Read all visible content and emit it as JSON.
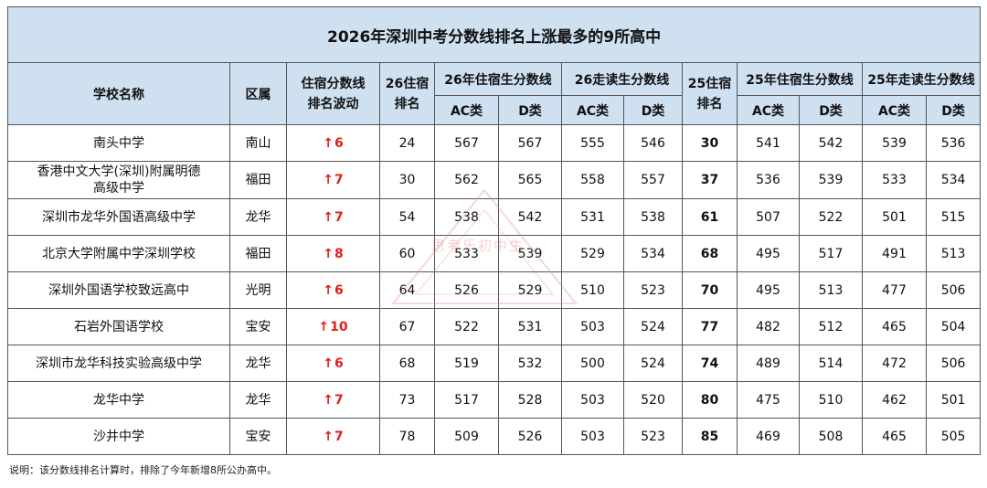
{
  "title": "2026年深圳中考分数线排名上涨最多的9所高中",
  "headers": {
    "school": "学校名称",
    "district": "区属",
    "wave": "住宿分数线排名波动",
    "rank26": "26住宿排名",
    "res26": "26年住宿生分数线",
    "day26": "26走读生分数线",
    "rank25": "25住宿排名",
    "res25": "25年住宿生分数线",
    "day25": "25年走读生分数线",
    "ac": "AC类",
    "d": "D类"
  },
  "rows": [
    {
      "school": "南头中学",
      "district": "南山",
      "arrow": "↑",
      "wave": "6",
      "rank26": "24",
      "r26ac": "567",
      "r26d": "567",
      "d26ac": "555",
      "d26d": "546",
      "rank25": "30",
      "r25ac": "541",
      "r25d": "542",
      "d25ac": "539",
      "d25d": "536"
    },
    {
      "school": "香港中文大学(深圳)附属明德高级中学",
      "district": "福田",
      "arrow": "↑",
      "wave": "7",
      "rank26": "30",
      "r26ac": "562",
      "r26d": "565",
      "d26ac": "558",
      "d26d": "557",
      "rank25": "37",
      "r25ac": "536",
      "r25d": "539",
      "d25ac": "533",
      "d25d": "534"
    },
    {
      "school": "深圳市龙华外国语高级中学",
      "district": "龙华",
      "arrow": "↑",
      "wave": "7",
      "rank26": "54",
      "r26ac": "538",
      "r26d": "542",
      "d26ac": "531",
      "d26d": "538",
      "rank25": "61",
      "r25ac": "507",
      "r25d": "522",
      "d25ac": "501",
      "d25d": "515"
    },
    {
      "school": "北京大学附属中学深圳学校",
      "district": "福田",
      "arrow": "↑",
      "wave": "8",
      "rank26": "60",
      "r26ac": "533",
      "r26d": "539",
      "d26ac": "529",
      "d26d": "534",
      "rank25": "68",
      "r25ac": "495",
      "r25d": "517",
      "d25ac": "491",
      "d25d": "513"
    },
    {
      "school": "深圳外国语学校致远高中",
      "district": "光明",
      "arrow": "↑",
      "wave": "6",
      "rank26": "64",
      "r26ac": "526",
      "r26d": "529",
      "d26ac": "510",
      "d26d": "523",
      "rank25": "70",
      "r25ac": "495",
      "r25d": "513",
      "d25ac": "477",
      "d25d": "506"
    },
    {
      "school": "石岩外国语学校",
      "district": "宝安",
      "arrow": "↑",
      "wave": "10",
      "rank26": "67",
      "r26ac": "522",
      "r26d": "531",
      "d26ac": "503",
      "d26d": "524",
      "rank25": "77",
      "r25ac": "482",
      "r25d": "512",
      "d25ac": "465",
      "d25d": "504"
    },
    {
      "school": "深圳市龙华科技实验高级中学",
      "district": "龙华",
      "arrow": "↑",
      "wave": "6",
      "rank26": "68",
      "r26ac": "519",
      "r26d": "532",
      "d26ac": "500",
      "d26d": "524",
      "rank25": "74",
      "r25ac": "489",
      "r25d": "514",
      "d25ac": "472",
      "d25d": "506"
    },
    {
      "school": "龙华中学",
      "district": "龙华",
      "arrow": "↑",
      "wave": "7",
      "rank26": "73",
      "r26ac": "517",
      "r26d": "528",
      "d26ac": "503",
      "d26d": "520",
      "rank25": "80",
      "r25ac": "475",
      "r25d": "510",
      "d25ac": "462",
      "d25d": "501"
    },
    {
      "school": "沙井中学",
      "district": "宝安",
      "arrow": "↑",
      "wave": "7",
      "rank26": "78",
      "r26ac": "509",
      "r26d": "526",
      "d26ac": "503",
      "d26d": "523",
      "rank25": "85",
      "r25ac": "469",
      "r25d": "508",
      "d25ac": "465",
      "d25d": "505"
    }
  ],
  "note": "说明：该分数线排名计算时，排除了今年新增8所公办高中。",
  "watermark": "思考乐初中生",
  "colors": {
    "header_bg": "#cfe0f1",
    "wave_red": "#e0201c"
  }
}
